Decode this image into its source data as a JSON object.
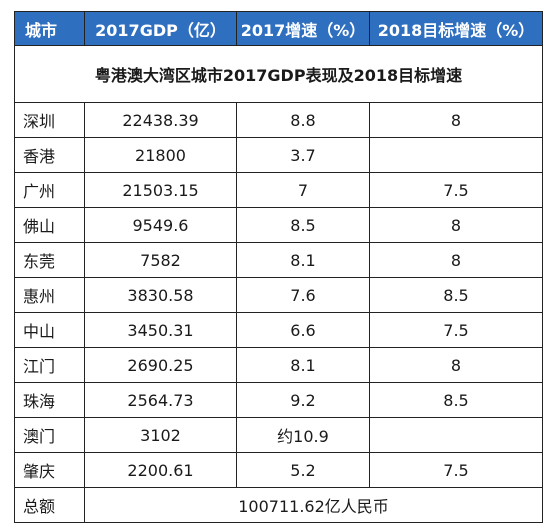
{
  "title": "粤港澳大湾区城市2017GDP表现及2018目标增速",
  "headers": {
    "city": "城市",
    "gdp": "2017GDP（亿）",
    "growth_2017": "2017增速（%）",
    "target_2018": "2018目标增速（%）"
  },
  "rows": [
    {
      "city": "深圳",
      "gdp": "22438.39",
      "growth_2017": "8.8",
      "target_2018": "8"
    },
    {
      "city": "香港",
      "gdp": "21800",
      "growth_2017": "3.7",
      "target_2018": ""
    },
    {
      "city": "广州",
      "gdp": "21503.15",
      "growth_2017": "7",
      "target_2018": "7.5"
    },
    {
      "city": "佛山",
      "gdp": "9549.6",
      "growth_2017": "8.5",
      "target_2018": "8"
    },
    {
      "city": "东莞",
      "gdp": "7582",
      "growth_2017": "8.1",
      "target_2018": "8"
    },
    {
      "city": "惠州",
      "gdp": "3830.58",
      "growth_2017": "7.6",
      "target_2018": "8.5"
    },
    {
      "city": "中山",
      "gdp": "3450.31",
      "growth_2017": "6.6",
      "target_2018": "7.5"
    },
    {
      "city": "江门",
      "gdp": "2690.25",
      "growth_2017": "8.1",
      "target_2018": "8"
    },
    {
      "city": "珠海",
      "gdp": "2564.73",
      "growth_2017": "9.2",
      "target_2018": "8.5"
    },
    {
      "city": "澳门",
      "gdp": "3102",
      "growth_2017": "约10.9",
      "target_2018": ""
    },
    {
      "city": "肇庆",
      "gdp": "2200.61",
      "growth_2017": "5.2",
      "target_2018": "7.5"
    }
  ],
  "total": {
    "label": "总额",
    "value": "100711.62亿人民币"
  },
  "colors": {
    "header_bg": "#2f6fbf",
    "header_text": "#ffffff",
    "border": "#222222"
  }
}
